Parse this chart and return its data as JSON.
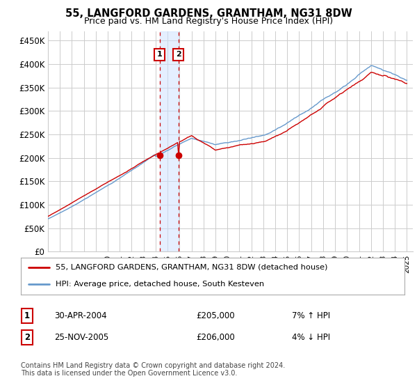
{
  "title": "55, LANGFORD GARDENS, GRANTHAM, NG31 8DW",
  "subtitle": "Price paid vs. HM Land Registry's House Price Index (HPI)",
  "ylim": [
    0,
    470000
  ],
  "xlim_start": 1995.0,
  "xlim_end": 2025.5,
  "sale1_date": 2004.33,
  "sale1_price": 205000,
  "sale1_text": "30-APR-2004",
  "sale1_pct": "7% ↑ HPI",
  "sale2_date": 2005.9,
  "sale2_price": 206000,
  "sale2_text": "25-NOV-2005",
  "sale2_pct": "4% ↓ HPI",
  "legend_line1": "55, LANGFORD GARDENS, GRANTHAM, NG31 8DW (detached house)",
  "legend_line2": "HPI: Average price, detached house, South Kesteven",
  "footer": "Contains HM Land Registry data © Crown copyright and database right 2024.\nThis data is licensed under the Open Government Licence v3.0.",
  "hpi_color": "#6699cc",
  "price_color": "#cc0000",
  "grid_color": "#cccccc",
  "background_color": "#ffffff",
  "shade_color": "#cce0ff"
}
